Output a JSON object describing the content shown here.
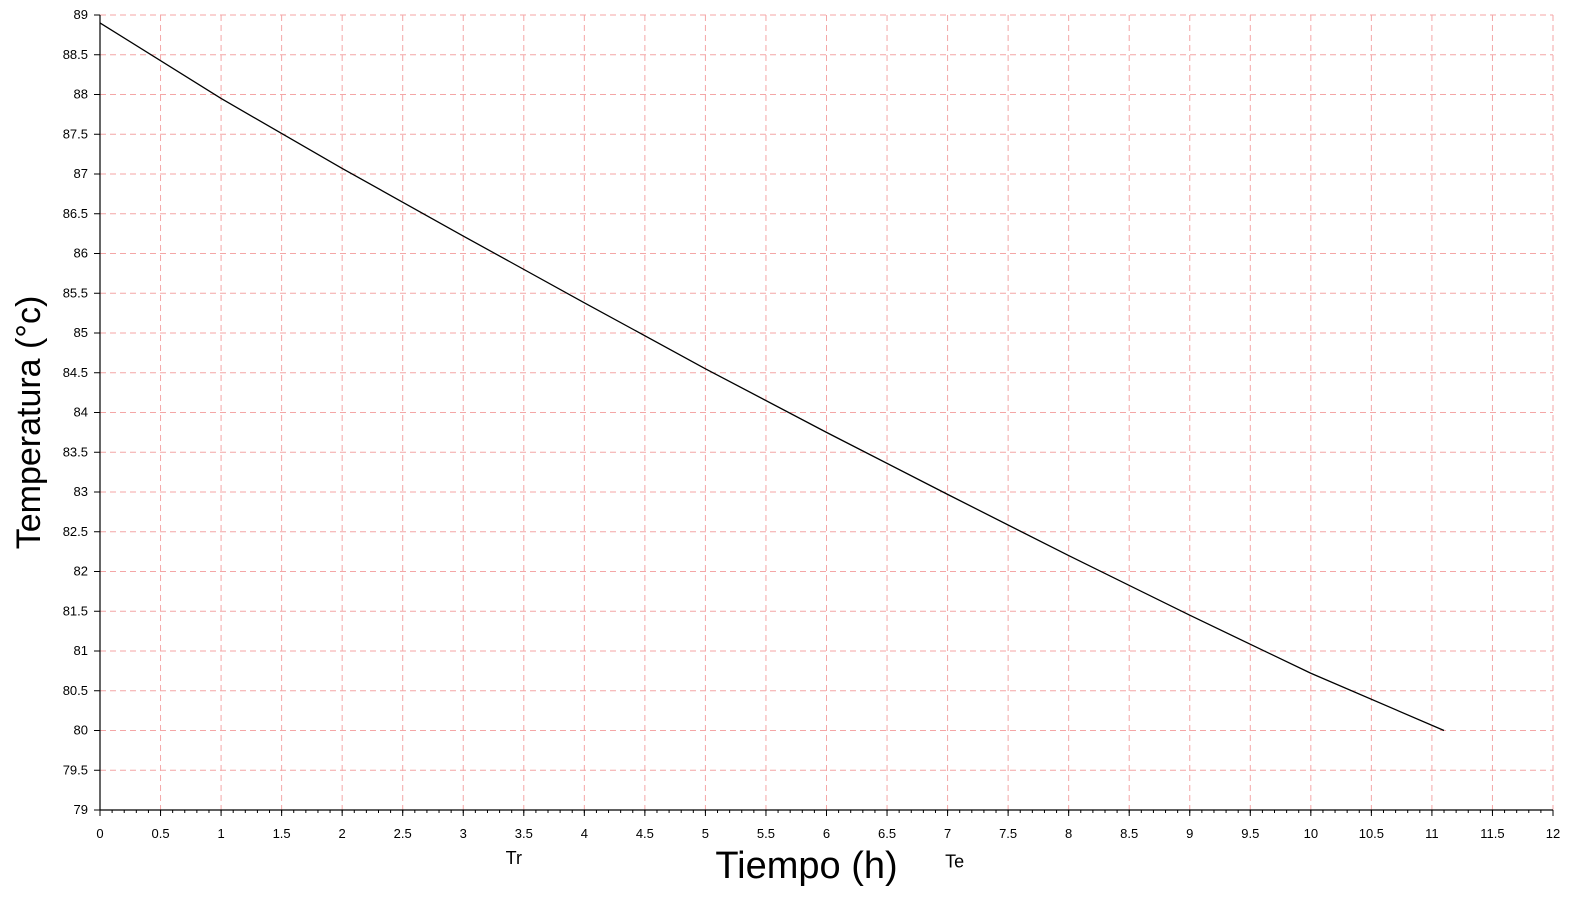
{
  "chart_data": {
    "type": "line",
    "title": "",
    "xlabel": "Tiempo (h)",
    "ylabel": "Temperatura (°c)",
    "xlim": [
      0,
      12
    ],
    "ylim": [
      79,
      89
    ],
    "xticks": [
      0,
      0.5,
      1,
      1.5,
      2,
      2.5,
      3,
      3.5,
      4,
      4.5,
      5,
      5.5,
      6,
      6.5,
      7,
      7.5,
      8,
      8.5,
      9,
      9.5,
      10,
      10.5,
      11,
      11.5,
      12
    ],
    "yticks": [
      79,
      79.5,
      80,
      80.5,
      81,
      81.5,
      82,
      82.5,
      83,
      83.5,
      84,
      84.5,
      85,
      85.5,
      86,
      86.5,
      87,
      87.5,
      88,
      88.5,
      89
    ],
    "grid": true,
    "grid_color": "#f4a6a6",
    "line_color": "#000000",
    "series": [
      {
        "x": [
          0,
          1,
          2,
          3,
          4,
          5,
          6,
          7,
          8,
          9,
          10,
          11.1
        ],
        "y": [
          88.9,
          87.95,
          87.07,
          86.22,
          85.38,
          84.55,
          83.75,
          82.97,
          82.2,
          81.45,
          80.72,
          80.0
        ]
      }
    ],
    "annotations": [
      {
        "text": "Tr",
        "x": 3.35,
        "y": 78.5
      },
      {
        "text": "Te",
        "x": 6.98,
        "y": 78.45
      }
    ]
  }
}
